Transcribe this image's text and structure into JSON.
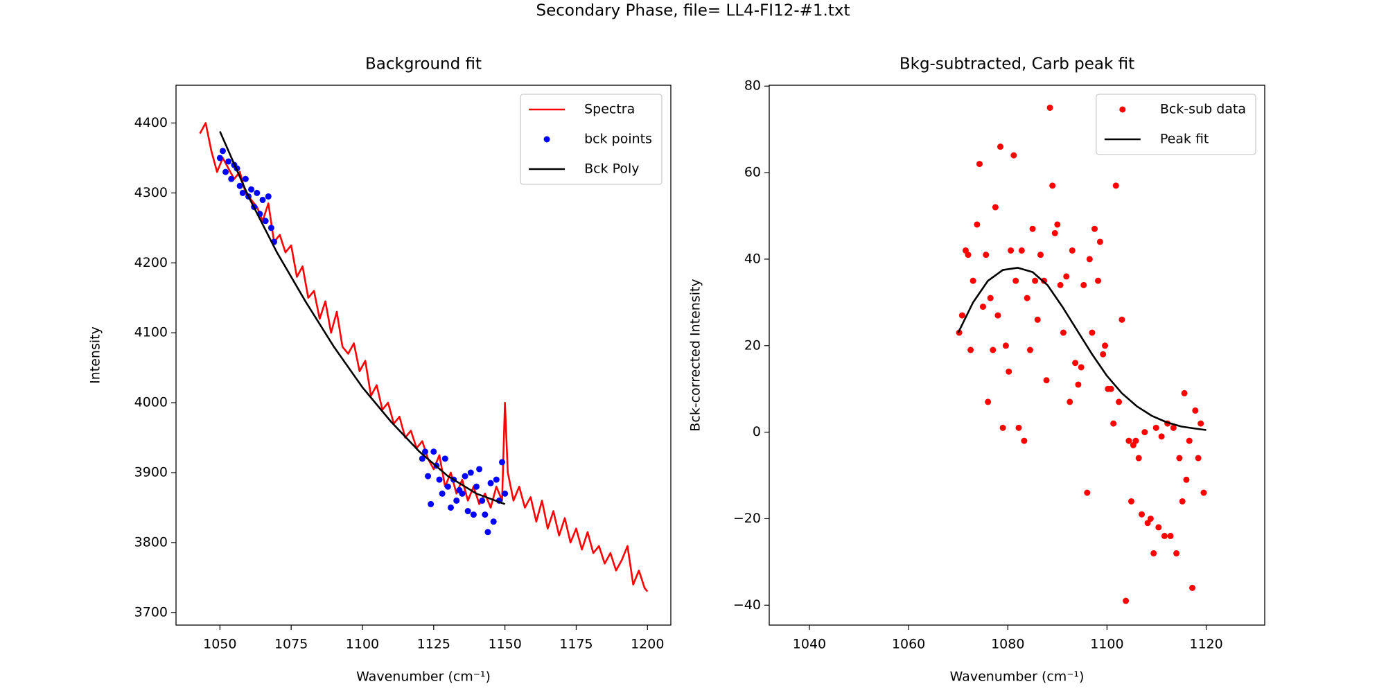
{
  "title": "Secondary Phase, file= LL4-FI12-#1.txt",
  "chart_data": [
    {
      "type": "line",
      "title": "Background fit",
      "x_label": "Wavenumber (cm⁻¹)",
      "y_label": "Intensity",
      "xlim": [
        1034.6,
        1208.2
      ],
      "ylim": [
        3682,
        4454
      ],
      "xticks": [
        1050,
        1075,
        1100,
        1125,
        1150,
        1175,
        1200
      ],
      "yticks": [
        3700,
        3800,
        3900,
        4000,
        4100,
        4200,
        4300,
        4400
      ],
      "legend": "upper right",
      "series": [
        {
          "name": "Spectra",
          "mode": "line",
          "color": "#ff0000",
          "x": [
            1043,
            1045,
            1047,
            1049,
            1051,
            1053,
            1055,
            1057,
            1059,
            1061,
            1063,
            1065,
            1067,
            1069,
            1071,
            1073,
            1075,
            1077,
            1079,
            1081,
            1083,
            1085,
            1087,
            1089,
            1091,
            1093,
            1095,
            1097,
            1099,
            1101,
            1103,
            1105,
            1107,
            1109,
            1111,
            1113,
            1115,
            1117,
            1119,
            1121,
            1123,
            1125,
            1127,
            1129,
            1131,
            1133,
            1135,
            1137,
            1139,
            1141,
            1143,
            1145,
            1147,
            1149,
            1150,
            1151,
            1153,
            1155,
            1157,
            1159,
            1161,
            1163,
            1165,
            1167,
            1169,
            1171,
            1173,
            1175,
            1177,
            1179,
            1181,
            1183,
            1185,
            1187,
            1189,
            1191,
            1193,
            1195,
            1197,
            1199,
            1200
          ],
          "values": [
            4385,
            4400,
            4360,
            4330,
            4350,
            4335,
            4320,
            4330,
            4300,
            4290,
            4280,
            4260,
            4285,
            4230,
            4240,
            4215,
            4225,
            4180,
            4195,
            4150,
            4160,
            4120,
            4145,
            4100,
            4130,
            4080,
            4070,
            4085,
            4045,
            4060,
            4010,
            4025,
            3990,
            4000,
            3970,
            3980,
            3950,
            3960,
            3935,
            3945,
            3920,
            3905,
            3925,
            3880,
            3900,
            3870,
            3890,
            3860,
            3880,
            3855,
            3870,
            3850,
            3880,
            3860,
            4000,
            3900,
            3860,
            3880,
            3850,
            3865,
            3830,
            3860,
            3820,
            3845,
            3810,
            3835,
            3800,
            3820,
            3790,
            3815,
            3785,
            3795,
            3770,
            3785,
            3760,
            3775,
            3795,
            3740,
            3760,
            3735,
            3730
          ]
        },
        {
          "name": "bck points",
          "mode": "markers",
          "color": "#0000ff",
          "x": [
            1050,
            1051,
            1052,
            1053,
            1054,
            1055,
            1056,
            1057,
            1058,
            1059,
            1060,
            1061,
            1062,
            1063,
            1064,
            1065,
            1066,
            1067,
            1068,
            1069,
            1121,
            1122,
            1123,
            1124,
            1125,
            1126,
            1127,
            1128,
            1129,
            1130,
            1131,
            1132,
            1133,
            1134,
            1135,
            1136,
            1137,
            1138,
            1139,
            1140,
            1141,
            1142,
            1143,
            1144,
            1145,
            1146,
            1147,
            1148,
            1149,
            1150
          ],
          "values": [
            4350,
            4360,
            4330,
            4345,
            4320,
            4340,
            4335,
            4310,
            4300,
            4320,
            4295,
            4305,
            4280,
            4300,
            4270,
            4290,
            4260,
            4295,
            4250,
            4230,
            3920,
            3930,
            3895,
            3855,
            3930,
            3910,
            3890,
            3870,
            3920,
            3880,
            3850,
            3890,
            3860,
            3875,
            3870,
            3895,
            3845,
            3900,
            3840,
            3880,
            3905,
            3860,
            3840,
            3815,
            3885,
            3830,
            3890,
            3860,
            3915,
            3870
          ]
        },
        {
          "name": "Bck Poly",
          "mode": "line",
          "color": "#000000",
          "x": [
            1050,
            1060,
            1070,
            1080,
            1090,
            1100,
            1110,
            1120,
            1130,
            1140,
            1150
          ],
          "values": [
            4388,
            4295,
            4215,
            4145,
            4080,
            4022,
            3973,
            3930,
            3895,
            3870,
            3855
          ]
        }
      ]
    },
    {
      "type": "line",
      "title": "Bkg-subtracted, Carb peak fit",
      "x_label": "Wavenumber (cm⁻¹)",
      "y_label": "Bck-corrected Intensity",
      "xlim": [
        1031.9,
        1131.8
      ],
      "ylim": [
        -44.6,
        80.2
      ],
      "xticks": [
        1040,
        1060,
        1080,
        1100,
        1120
      ],
      "yticks": [
        {
          "value": -40,
          "label": "−40"
        },
        {
          "value": -20,
          "label": "−20"
        },
        0,
        20,
        40,
        60,
        80
      ],
      "legend": "upper right",
      "series": [
        {
          "name": "Bck-sub data",
          "mode": "markers",
          "color": "#ff0000",
          "x": [
            1070.2,
            1070.8,
            1071.5,
            1072,
            1072.5,
            1073,
            1073.8,
            1074.3,
            1075,
            1075.6,
            1076,
            1076.5,
            1077,
            1077.5,
            1078,
            1078.5,
            1079,
            1079.6,
            1080.2,
            1080.6,
            1081.2,
            1081.6,
            1082.2,
            1082.8,
            1083.3,
            1083.9,
            1084.5,
            1085,
            1085.5,
            1086,
            1086.6,
            1087.3,
            1087.8,
            1088.5,
            1089,
            1089.5,
            1090,
            1090.6,
            1091.2,
            1091.8,
            1092.5,
            1093,
            1093.6,
            1094.2,
            1094.8,
            1095.3,
            1096,
            1096.5,
            1097,
            1097.5,
            1098.2,
            1098.6,
            1099.2,
            1099.6,
            1100.2,
            1100.8,
            1101.3,
            1101.8,
            1102.4,
            1103,
            1103.8,
            1104.4,
            1104.9,
            1105.3,
            1105.8,
            1106.4,
            1107,
            1107.6,
            1108.2,
            1108.8,
            1109.4,
            1109.9,
            1110.4,
            1111,
            1111.6,
            1112.2,
            1112.8,
            1113.4,
            1114,
            1114.6,
            1115.2,
            1115.6,
            1116,
            1116.6,
            1117.2,
            1117.8,
            1118.4,
            1118.9,
            1119.5
          ],
          "values": [
            23,
            27,
            42,
            41,
            19,
            35,
            48,
            62,
            29,
            41,
            7,
            31,
            19,
            52,
            27,
            66,
            1,
            20,
            14,
            42,
            64,
            35,
            1,
            42,
            -2,
            31,
            19,
            47,
            35,
            26,
            41,
            35,
            12,
            75,
            57,
            46,
            48,
            34,
            23,
            36,
            7,
            42,
            16,
            11,
            15,
            34,
            -14,
            40,
            23,
            47,
            35,
            44,
            18,
            20,
            10,
            10,
            2,
            57,
            7,
            26,
            -39,
            -2,
            -16,
            -3,
            -2,
            -6,
            -19,
            0,
            -21,
            -20,
            -28,
            1,
            -22,
            -1,
            -24,
            2,
            -24,
            1,
            -28,
            -6,
            -16,
            9,
            -11,
            -2,
            -36,
            5,
            -6,
            2,
            -14
          ]
        },
        {
          "name": "Peak fit",
          "mode": "line",
          "color": "#000000",
          "x": [
            1070,
            1073,
            1076,
            1079,
            1082,
            1085,
            1088,
            1091,
            1094,
            1097,
            1100,
            1103,
            1106,
            1109,
            1112,
            1115,
            1118,
            1120
          ],
          "values": [
            23,
            30,
            35,
            37.5,
            38,
            37,
            34,
            29,
            23.5,
            18,
            13,
            9,
            6,
            3.8,
            2.3,
            1.3,
            0.8,
            0.5
          ]
        }
      ]
    }
  ]
}
